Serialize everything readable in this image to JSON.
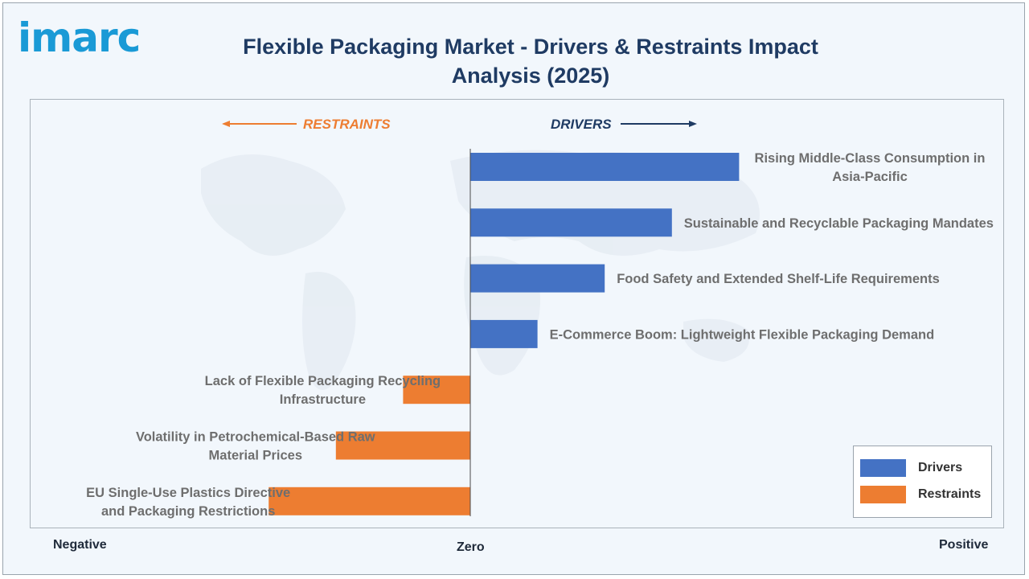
{
  "header": {
    "logo_text": "imarc",
    "title": "Flexible Packaging Market - Drivers & Restraints Impact Analysis (2025)"
  },
  "colors": {
    "drivers": "#4472c4",
    "restraints": "#ed7d31",
    "title": "#1f3b63",
    "logo": "#1a9ad6"
  },
  "chart_data": {
    "type": "bar",
    "orientation": "horizontal",
    "title": "Flexible Packaging Market - Drivers & Restraints Impact Analysis (2025)",
    "direction_labels": {
      "left": "RESTRAINTS",
      "right": "DRIVERS"
    },
    "axis_labels": {
      "negative": "Negative",
      "zero": "Zero",
      "positive": "Positive"
    },
    "xlim": [
      -1,
      1
    ],
    "grid": false,
    "legend_position": "bottom-right",
    "categories": [
      "Rising Middle-Class Consumption in Asia-Pacific",
      "Sustainable and Recyclable Packaging Mandates",
      "Food Safety and Extended Shelf-Life Requirements",
      "E-Commerce Boom: Lightweight Flexible Packaging Demand",
      "Lack of Flexible Packaging Recycling Infrastructure",
      "Volatility in Petrochemical-Based Raw Material Prices",
      "EU Single-Use Plastics Directive and Packaging Restrictions"
    ],
    "label_lines": [
      [
        "Rising Middle-Class Consumption in",
        "Asia-Pacific"
      ],
      [
        "Sustainable and Recyclable Packaging Mandates"
      ],
      [
        "Food Safety and Extended Shelf-Life Requirements"
      ],
      [
        "E-Commerce Boom: Lightweight Flexible Packaging Demand"
      ],
      [
        "Lack of Flexible Packaging Recycling",
        "Infrastructure"
      ],
      [
        "Volatility in Petrochemical-Based Raw",
        "Material Prices"
      ],
      [
        "EU Single-Use Plastics Directive",
        "and Packaging Restrictions"
      ]
    ],
    "values": [
      0.8,
      0.6,
      0.4,
      0.2,
      -0.2,
      -0.4,
      -0.6
    ],
    "series": [
      {
        "name": "Drivers",
        "indices": [
          0,
          1,
          2,
          3
        ]
      },
      {
        "name": "Restraints",
        "indices": [
          4,
          5,
          6
        ]
      }
    ]
  }
}
